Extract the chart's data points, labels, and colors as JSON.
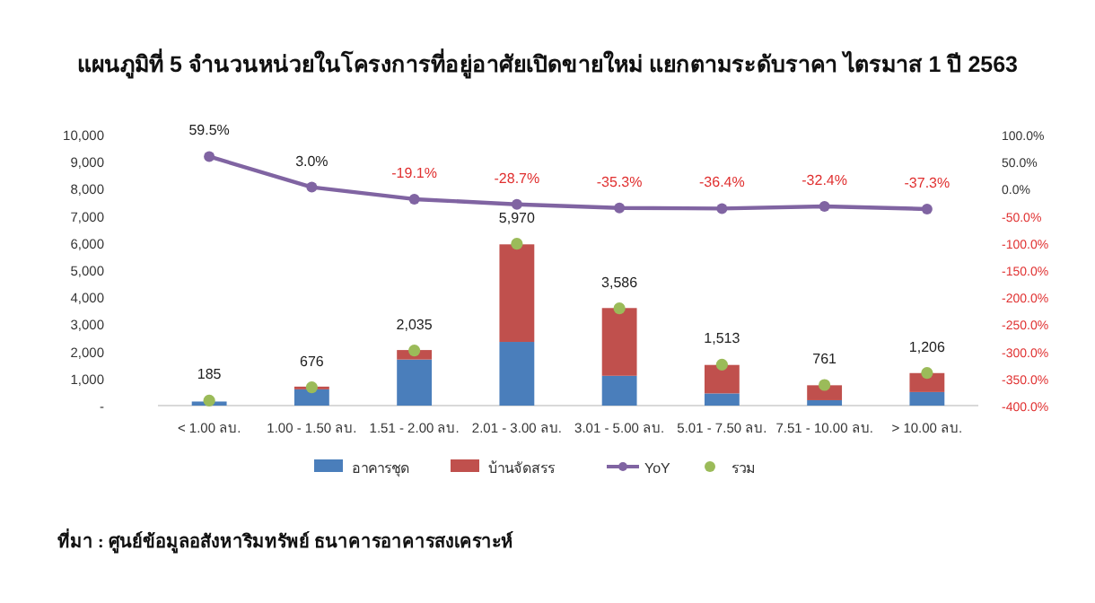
{
  "chart_data": {
    "type": "bar",
    "title": "แผนภูมิที่ 5 จำนวนหน่วยในโครงการที่อยู่อาศัยเปิดขายใหม่ แยกตามระดับราคา ไตรมาส 1 ปี 2563",
    "categories": [
      "< 1.00 ลบ.",
      "1.00 - 1.50 ลบ.",
      "1.51 - 2.00 ลบ.",
      "2.01 - 3.00 ลบ.",
      "3.01 - 5.00 ลบ.",
      "5.01 - 7.50 ลบ.",
      "7.51 - 10.00 ลบ.",
      "> 10.00 ลบ."
    ],
    "stacked": true,
    "series": [
      {
        "name": "อาคารชุด",
        "color": "#4a7ebb",
        "values": [
          150,
          600,
          1700,
          2350,
          1100,
          450,
          200,
          500
        ]
      },
      {
        "name": "บ้านจัดสรร",
        "color": "#c0504d",
        "values": [
          null,
          100,
          350,
          3600,
          2500,
          1050,
          550,
          700
        ]
      },
      {
        "name": "YoY",
        "type": "line",
        "axis": "y2",
        "marker": "circle",
        "color": "#8064a2",
        "values": [
          59.5,
          3.0,
          -19.1,
          -28.7,
          -35.3,
          -36.4,
          -32.4,
          -37.3
        ],
        "value_labels": [
          "59.5%",
          "3.0%",
          "-19.1%",
          "-28.7%",
          "-35.3%",
          "-36.4%",
          "-32.4%",
          "-37.3%"
        ]
      },
      {
        "name": "รวม",
        "type": "scatter",
        "marker": "circle",
        "color": "#9bbb59",
        "values": [
          185,
          676,
          2035,
          5970,
          3586,
          1513,
          761,
          1206
        ],
        "value_labels": [
          "185",
          "676",
          "2,035",
          "5,970",
          "3,586",
          "1,513",
          "761",
          "1,206"
        ]
      }
    ],
    "ylim": [
      0,
      10000
    ],
    "yticks": [
      {
        "value": 0,
        "label": "-"
      },
      {
        "value": 1000,
        "label": "1,000"
      },
      {
        "value": 2000,
        "label": "2,000"
      },
      {
        "value": 3000,
        "label": "3,000"
      },
      {
        "value": 4000,
        "label": "4,000"
      },
      {
        "value": 5000,
        "label": "5,000"
      },
      {
        "value": 6000,
        "label": "6,000"
      },
      {
        "value": 7000,
        "label": "7,000"
      },
      {
        "value": 8000,
        "label": "8,000"
      },
      {
        "value": 9000,
        "label": "9,000"
      },
      {
        "value": 10000,
        "label": "10,000"
      }
    ],
    "y2lim": [
      -400,
      100
    ],
    "y2ticks": [
      {
        "value": 100,
        "label": "100.0%"
      },
      {
        "value": 50,
        "label": "50.0%"
      },
      {
        "value": 0,
        "label": "0.0%"
      },
      {
        "value": -50,
        "label": "-50.0%"
      },
      {
        "value": -100,
        "label": "-100.0%"
      },
      {
        "value": -150,
        "label": "-150.0%"
      },
      {
        "value": -200,
        "label": "-200.0%"
      },
      {
        "value": -250,
        "label": "-250.0%"
      },
      {
        "value": -300,
        "label": "-300.0%"
      },
      {
        "value": -350,
        "label": "-350.0%"
      },
      {
        "value": -400,
        "label": "-400.0%"
      }
    ],
    "legend": "bottom",
    "grid": false,
    "annotations": [
      "ที่มา : ศูนย์ข้อมูลอสังหาริมทรัพย์ ธนาคารอาคารสงเคราะห์"
    ]
  }
}
